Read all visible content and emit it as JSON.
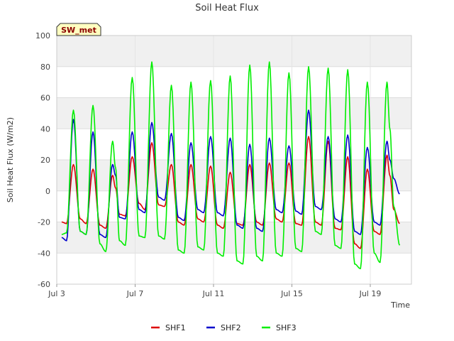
{
  "chart_data": {
    "type": "line",
    "title": "Soil Heat Flux",
    "xlabel": "Time",
    "ylabel": "Soil Heat Flux (W/m2)",
    "ylim": [
      -60,
      100
    ],
    "yticks": [
      -60,
      -40,
      -20,
      0,
      20,
      40,
      60,
      80,
      100
    ],
    "xlim_days": [
      3.0,
      21.1
    ],
    "xticks": [
      {
        "day": 3,
        "label": "Jul 3"
      },
      {
        "day": 7,
        "label": "Jul 7"
      },
      {
        "day": 11,
        "label": "Jul 11"
      },
      {
        "day": 15,
        "label": "Jul 15"
      },
      {
        "day": 19,
        "label": "Jul 19"
      }
    ],
    "badge": "SW_met",
    "legend_position": "bottom-center",
    "daily_extremes_note": "Each series oscillates daily; values are daily peak (day, W/m2) and nightly trough (day, W/m2) read from the plot.",
    "series": [
      {
        "name": "SHF1",
        "color": "#dd0000",
        "points": [
          [
            3.25,
            -20
          ],
          [
            3.5,
            -21
          ],
          [
            3.85,
            17
          ],
          [
            4.2,
            -18
          ],
          [
            4.5,
            -21
          ],
          [
            4.85,
            14
          ],
          [
            5.2,
            -22
          ],
          [
            5.5,
            -24
          ],
          [
            5.85,
            10
          ],
          [
            6.0,
            2
          ],
          [
            6.2,
            -15
          ],
          [
            6.5,
            -16
          ],
          [
            6.85,
            22
          ],
          [
            7.2,
            -8
          ],
          [
            7.5,
            -12
          ],
          [
            7.85,
            31
          ],
          [
            8.2,
            -9
          ],
          [
            8.5,
            -10
          ],
          [
            8.85,
            17
          ],
          [
            9.2,
            -20
          ],
          [
            9.5,
            -22
          ],
          [
            9.85,
            17
          ],
          [
            10.2,
            -18
          ],
          [
            10.5,
            -20
          ],
          [
            10.85,
            16
          ],
          [
            11.2,
            -22
          ],
          [
            11.5,
            -24
          ],
          [
            11.85,
            12
          ],
          [
            12.2,
            -21
          ],
          [
            12.5,
            -22
          ],
          [
            12.85,
            17
          ],
          [
            13.2,
            -20
          ],
          [
            13.5,
            -22
          ],
          [
            13.85,
            18
          ],
          [
            14.2,
            -18
          ],
          [
            14.5,
            -20
          ],
          [
            14.85,
            18
          ],
          [
            15.2,
            -21
          ],
          [
            15.5,
            -22
          ],
          [
            15.85,
            35
          ],
          [
            16.2,
            -20
          ],
          [
            16.5,
            -22
          ],
          [
            16.85,
            32
          ],
          [
            17.2,
            -24
          ],
          [
            17.5,
            -25
          ],
          [
            17.85,
            22
          ],
          [
            18.2,
            -34
          ],
          [
            18.5,
            -37
          ],
          [
            18.85,
            14
          ],
          [
            19.2,
            -26
          ],
          [
            19.5,
            -28
          ],
          [
            19.85,
            23
          ],
          [
            20.0,
            10
          ],
          [
            20.2,
            -12
          ],
          [
            20.5,
            -21
          ]
        ]
      },
      {
        "name": "SHF2",
        "color": "#0000cc",
        "points": [
          [
            3.25,
            -30
          ],
          [
            3.5,
            -32
          ],
          [
            3.85,
            46
          ],
          [
            4.2,
            -26
          ],
          [
            4.5,
            -28
          ],
          [
            4.85,
            38
          ],
          [
            5.2,
            -28
          ],
          [
            5.5,
            -30
          ],
          [
            5.85,
            17
          ],
          [
            6.0,
            10
          ],
          [
            6.2,
            -17
          ],
          [
            6.5,
            -18
          ],
          [
            6.85,
            38
          ],
          [
            7.2,
            -12
          ],
          [
            7.5,
            -14
          ],
          [
            7.85,
            44
          ],
          [
            8.2,
            -4
          ],
          [
            8.5,
            -6
          ],
          [
            8.85,
            37
          ],
          [
            9.2,
            -17
          ],
          [
            9.5,
            -19
          ],
          [
            9.85,
            31
          ],
          [
            10.2,
            -12
          ],
          [
            10.5,
            -14
          ],
          [
            10.85,
            35
          ],
          [
            11.2,
            -14
          ],
          [
            11.5,
            -16
          ],
          [
            11.85,
            34
          ],
          [
            12.2,
            -22
          ],
          [
            12.5,
            -24
          ],
          [
            12.85,
            30
          ],
          [
            13.2,
            -24
          ],
          [
            13.5,
            -26
          ],
          [
            13.85,
            34
          ],
          [
            14.2,
            -12
          ],
          [
            14.5,
            -14
          ],
          [
            14.85,
            29
          ],
          [
            15.2,
            -13
          ],
          [
            15.5,
            -15
          ],
          [
            15.85,
            52
          ],
          [
            16.2,
            -10
          ],
          [
            16.5,
            -12
          ],
          [
            16.85,
            35
          ],
          [
            17.2,
            -18
          ],
          [
            17.5,
            -20
          ],
          [
            17.85,
            36
          ],
          [
            18.2,
            -26
          ],
          [
            18.5,
            -28
          ],
          [
            18.85,
            28
          ],
          [
            19.2,
            -20
          ],
          [
            19.5,
            -22
          ],
          [
            19.85,
            32
          ],
          [
            20.0,
            20
          ],
          [
            20.2,
            8
          ],
          [
            20.5,
            -2
          ]
        ]
      },
      {
        "name": "SHF3",
        "color": "#00ee00",
        "points": [
          [
            3.25,
            -28
          ],
          [
            3.5,
            -27
          ],
          [
            3.85,
            52
          ],
          [
            4.2,
            -26
          ],
          [
            4.5,
            -28
          ],
          [
            4.85,
            55
          ],
          [
            5.2,
            -34
          ],
          [
            5.5,
            -39
          ],
          [
            5.85,
            32
          ],
          [
            6.0,
            15
          ],
          [
            6.2,
            -32
          ],
          [
            6.5,
            -35
          ],
          [
            6.85,
            73
          ],
          [
            7.2,
            -29
          ],
          [
            7.5,
            -30
          ],
          [
            7.85,
            83
          ],
          [
            8.2,
            -29
          ],
          [
            8.5,
            -31
          ],
          [
            8.85,
            68
          ],
          [
            9.2,
            -38
          ],
          [
            9.5,
            -40
          ],
          [
            9.85,
            70
          ],
          [
            10.2,
            -36
          ],
          [
            10.5,
            -38
          ],
          [
            10.85,
            71
          ],
          [
            11.2,
            -40
          ],
          [
            11.5,
            -42
          ],
          [
            11.85,
            74
          ],
          [
            12.2,
            -45
          ],
          [
            12.5,
            -47
          ],
          [
            12.85,
            81
          ],
          [
            13.2,
            -42
          ],
          [
            13.5,
            -45
          ],
          [
            13.85,
            83
          ],
          [
            14.2,
            -40
          ],
          [
            14.5,
            -42
          ],
          [
            14.85,
            76
          ],
          [
            15.2,
            -37
          ],
          [
            15.5,
            -39
          ],
          [
            15.85,
            80
          ],
          [
            16.2,
            -26
          ],
          [
            16.5,
            -28
          ],
          [
            16.85,
            79
          ],
          [
            17.2,
            -35
          ],
          [
            17.5,
            -37
          ],
          [
            17.85,
            78
          ],
          [
            18.2,
            -47
          ],
          [
            18.5,
            -50
          ],
          [
            18.85,
            70
          ],
          [
            19.2,
            -40
          ],
          [
            19.5,
            -46
          ],
          [
            19.85,
            70
          ],
          [
            20.0,
            40
          ],
          [
            20.2,
            -10
          ],
          [
            20.5,
            -35
          ]
        ]
      }
    ]
  }
}
